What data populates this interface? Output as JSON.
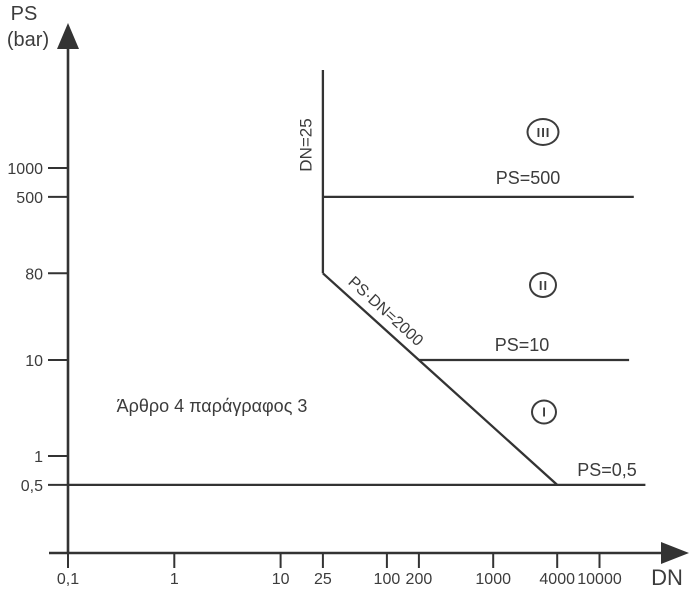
{
  "chart_data": {
    "type": "line",
    "title": "",
    "x_axis": {
      "label": "DN",
      "scale": "log",
      "ticks": [
        {
          "value": 0.1,
          "label": "0,1"
        },
        {
          "value": 1,
          "label": "1"
        },
        {
          "value": 10,
          "label": "10"
        },
        {
          "value": 25,
          "label": "25"
        },
        {
          "value": 100,
          "label": "100"
        },
        {
          "value": 200,
          "label": "200"
        },
        {
          "value": 1000,
          "label": "1000"
        },
        {
          "value": 4000,
          "label": "4000"
        },
        {
          "value": 10000,
          "label": "10000"
        }
      ]
    },
    "y_axis": {
      "label_line1": "PS",
      "label_line2": "(bar)",
      "scale": "log",
      "ticks": [
        {
          "value": 1000,
          "label": "1000"
        },
        {
          "value": 500,
          "label": "500"
        },
        {
          "value": 80,
          "label": "80"
        },
        {
          "value": 10,
          "label": "10"
        },
        {
          "value": 1,
          "label": "1"
        },
        {
          "value": 0.5,
          "label": "0,5"
        }
      ]
    },
    "boundary_lines": [
      {
        "id": "dn25",
        "label": "DN=25",
        "points": [
          [
            25,
            10500
          ],
          [
            25,
            80
          ]
        ]
      },
      {
        "id": "psdn2000",
        "label": "PS·DN=2000",
        "points": [
          [
            25,
            80
          ],
          [
            4000,
            0.5
          ]
        ]
      },
      {
        "id": "ps500",
        "label": "PS=500",
        "points": [
          [
            25,
            500
          ],
          [
            21000,
            500
          ]
        ]
      },
      {
        "id": "ps10",
        "label": "PS=10",
        "points": [
          [
            200,
            10
          ],
          [
            19000,
            10
          ]
        ]
      },
      {
        "id": "ps05",
        "label": "PS=0,5",
        "points": [
          [
            0.1,
            0.5
          ],
          [
            27000,
            0.5
          ]
        ]
      }
    ],
    "zones": [
      {
        "id": "zone-iii",
        "numeral": "III"
      },
      {
        "id": "zone-ii",
        "numeral": "II"
      },
      {
        "id": "zone-i",
        "numeral": "I"
      }
    ],
    "annotation": "Άρθρο 4 παράγραφος 3"
  },
  "colors": {
    "line": "#333333",
    "text": "#3c3c3c",
    "background": "#ffffff"
  }
}
